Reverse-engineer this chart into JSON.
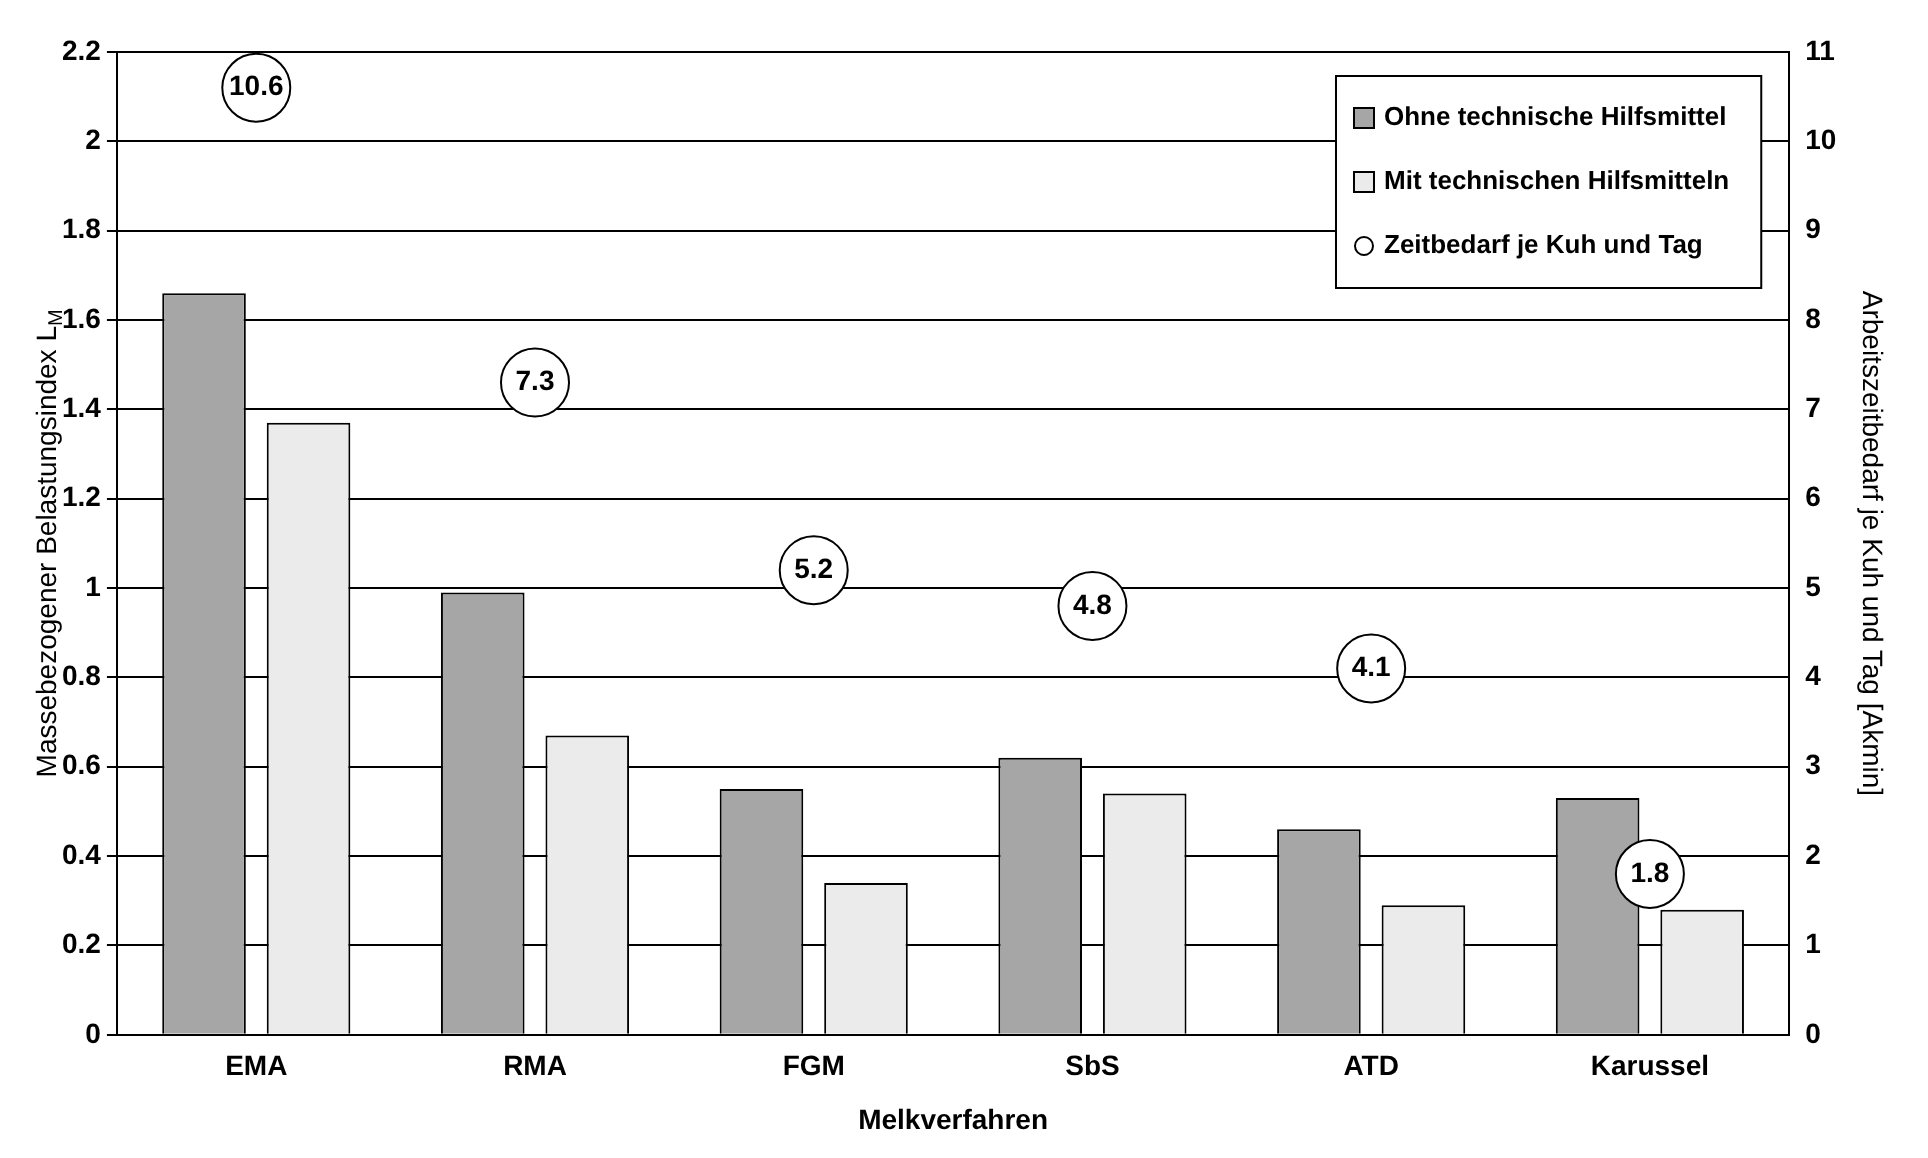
{
  "chart_data": {
    "type": "bar",
    "xlabel": "Melkverfahren",
    "ylabel": "Massebezogener Belastungsindex L$_{M}$",
    "y2label": "Arbeitszeitbedarf je Kuh und Tag [Akmin]",
    "categories": [
      "EMA",
      "RMA",
      "FGM",
      "SbS",
      "ATD",
      "Karussel"
    ],
    "series": [
      {
        "name": "Ohne technische Hilfsmittel",
        "color": "#a6a6a6",
        "values": [
          1.66,
          0.99,
          0.55,
          0.62,
          0.46,
          0.53
        ]
      },
      {
        "name": "Mit technischen Hilfsmitteln",
        "color": "#ebebeb",
        "values": [
          1.37,
          0.67,
          0.34,
          0.54,
          0.29,
          0.28
        ]
      },
      {
        "name": "Zeitbedarf je Kuh und Tag",
        "type": "scatter",
        "axis": "y2",
        "marker": "circle",
        "color": "#ffffff",
        "x": [
          "EMA",
          "RMA",
          "FGM",
          "SbS",
          "ATD",
          "Karussel"
        ],
        "values": [
          10.6,
          7.3,
          5.2,
          4.8,
          4.1,
          1.8
        ],
        "value_labels": [
          "10.6",
          "7.3",
          "5.2",
          "4.8",
          "4.1",
          "1.8"
        ]
      }
    ],
    "ylim": [
      0,
      2.2
    ],
    "yticks": [
      0,
      0.2,
      0.4,
      0.6,
      0.8,
      1,
      1.2,
      1.4,
      1.6,
      1.8,
      2,
      2.2
    ],
    "y2lim": [
      0,
      11
    ],
    "y2ticks": [
      0,
      1,
      2,
      3,
      4,
      5,
      6,
      7,
      8,
      9,
      10,
      11
    ],
    "grid": "y",
    "legend": "top right"
  }
}
